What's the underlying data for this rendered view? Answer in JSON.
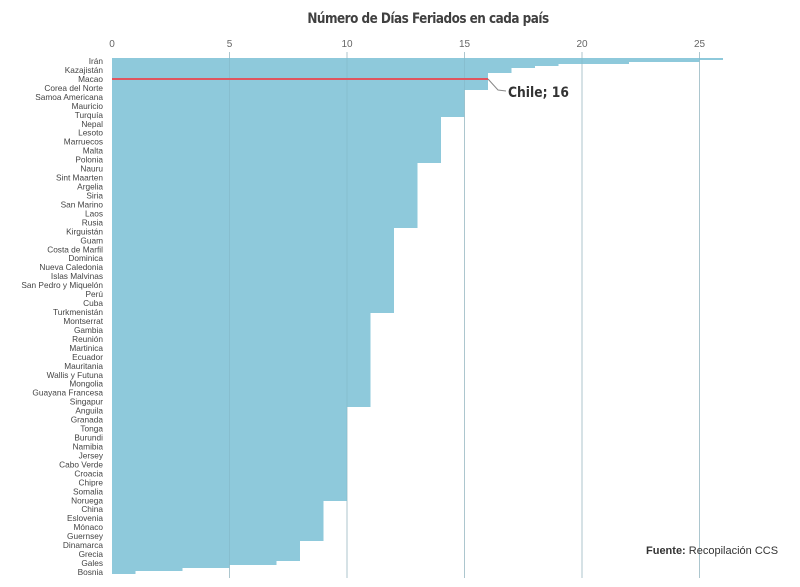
{
  "chart_data": {
    "type": "bar",
    "orientation": "horizontal",
    "style": "step-area",
    "title": "Número de Días Feriados en cada país",
    "xlabel": "",
    "ylabel": "",
    "xlim": [
      0,
      26
    ],
    "x_ticks": [
      0,
      5,
      10,
      15,
      20,
      25
    ],
    "grid": true,
    "legend": null,
    "bar_color": "#8ec9db",
    "highlight_color": "#e0555f",
    "labeled_categories": [
      "Irán",
      "Kazajistán",
      "Macao",
      "Corea del Norte",
      "Samoa Americana",
      "Mauricio",
      "Turquía",
      "Nepal",
      "Lesoto",
      "Marruecos",
      "Malta",
      "Polonia",
      "Nauru",
      "Sint Maarten",
      "Argelia",
      "Siria",
      "San Marino",
      "Laos",
      "Rusia",
      "Kirguistán",
      "Guam",
      "Costa de Marfil",
      "Dominica",
      "Nueva Caledonia",
      "Islas Malvinas",
      "San Pedro y Miquelón",
      "Perú",
      "Cuba",
      "Turkmenistán",
      "Montserrat",
      "Gambia",
      "Reunión",
      "Martinica",
      "Ecuador",
      "Mauritania",
      "Wallis y Futuna",
      "Mongolia",
      "Guayana Francesa",
      "Singapur",
      "Anguila",
      "Granada",
      "Tonga",
      "Burundi",
      "Namibia",
      "Jersey",
      "Cabo Verde",
      "Croacia",
      "Chipre",
      "Somalia",
      "Noruega",
      "China",
      "Eslovenia",
      "Mónaco",
      "Guernsey",
      "Dinamarca",
      "Grecia",
      "Gales",
      "Bosnia"
    ],
    "steps": [
      {
        "value": 26,
        "y_from": 58,
        "y_to": 60
      },
      {
        "value": 25,
        "y_from": 60,
        "y_to": 62
      },
      {
        "value": 22,
        "y_from": 62,
        "y_to": 64
      },
      {
        "value": 19,
        "y_from": 64,
        "y_to": 66
      },
      {
        "value": 18,
        "y_from": 66,
        "y_to": 68
      },
      {
        "value": 17,
        "y_from": 68,
        "y_to": 73
      },
      {
        "value": 16,
        "y_from": 73,
        "y_to": 90
      },
      {
        "value": 15,
        "y_from": 90,
        "y_to": 117
      },
      {
        "value": 14,
        "y_from": 117,
        "y_to": 163
      },
      {
        "value": 13,
        "y_from": 163,
        "y_to": 228
      },
      {
        "value": 12,
        "y_from": 228,
        "y_to": 313
      },
      {
        "value": 11,
        "y_from": 313,
        "y_to": 407
      },
      {
        "value": 10,
        "y_from": 407,
        "y_to": 501
      },
      {
        "value": 9,
        "y_from": 501,
        "y_to": 541
      },
      {
        "value": 8,
        "y_from": 541,
        "y_to": 561
      },
      {
        "value": 7,
        "y_from": 561,
        "y_to": 565
      },
      {
        "value": 5,
        "y_from": 565,
        "y_to": 568
      },
      {
        "value": 3,
        "y_from": 568,
        "y_to": 571
      },
      {
        "value": 1,
        "y_from": 571,
        "y_to": 574
      }
    ],
    "annotation": {
      "label": "Chile; 16",
      "value": 16
    }
  },
  "source": {
    "label": "Fuente:",
    "text": " Recopilación CCS"
  }
}
